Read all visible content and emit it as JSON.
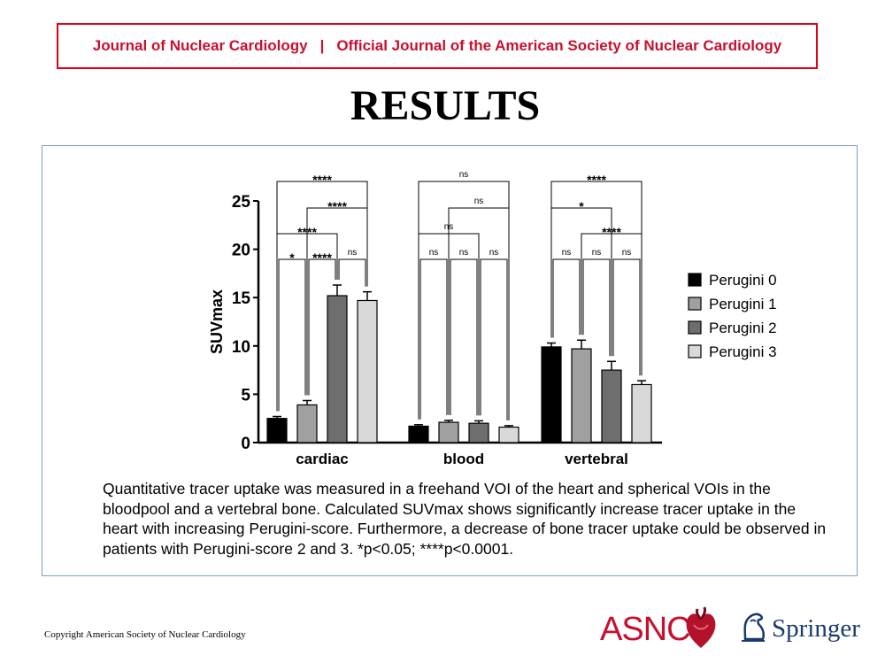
{
  "header": {
    "journal": "Journal of Nuclear Cardiology",
    "separator": "|",
    "subtitle": "Official Journal of the American Society of Nuclear Cardiology"
  },
  "slide_title": "RESULTS",
  "caption": "Quantitative tracer uptake was measured in a freehand VOI of the heart and spherical VOIs in the bloodpool and a vertebral bone. Calculated SUVmax shows significantly increase tracer uptake in the heart with increasing Perugini-score. Furthermore, a decrease of bone tracer uptake could be observed in patients with Perugini-score 2 and 3. *p<0.05; ****p<0.0001.",
  "footer": {
    "copyright": "Copyright  American Society of Nuclear Cardiology",
    "asnc_logo": "ASNC",
    "springer_logo": "Springer"
  },
  "colors": {
    "header_red": "#c8102e",
    "panel_border": "#7f9fc8",
    "perugini_0": "#000000",
    "perugini_1": "#a0a0a0",
    "perugini_2": "#6e6e6e",
    "perugini_3": "#d9d9d9"
  },
  "chart_data": {
    "type": "bar",
    "ylabel": "SUVmax",
    "ylim": [
      0,
      25
    ],
    "yticks": [
      0,
      5,
      10,
      15,
      20,
      25
    ],
    "categories": [
      "cardiac",
      "blood",
      "vertebral"
    ],
    "series": [
      {
        "name": "Perugini 0",
        "values": [
          2.5,
          1.7,
          9.9
        ],
        "errors": [
          0.2,
          0.15,
          0.4
        ]
      },
      {
        "name": "Perugini 1",
        "values": [
          3.9,
          2.1,
          9.7
        ],
        "errors": [
          0.45,
          0.2,
          0.9
        ]
      },
      {
        "name": "Perugini 2",
        "values": [
          15.2,
          2.0,
          7.5
        ],
        "errors": [
          1.1,
          0.25,
          0.9
        ]
      },
      {
        "name": "Perugini 3",
        "values": [
          14.7,
          1.6,
          6.0
        ],
        "errors": [
          0.9,
          0.15,
          0.4
        ]
      }
    ],
    "legend": "right",
    "significance": [
      {
        "category": "cardiac",
        "from": 0,
        "to": 3,
        "label": "****",
        "level": 4
      },
      {
        "category": "cardiac",
        "from": 1,
        "to": 3,
        "label": "****",
        "level": 3
      },
      {
        "category": "cardiac",
        "from": 0,
        "to": 2,
        "label": "****",
        "level": 2
      },
      {
        "category": "cardiac",
        "from": 0,
        "to": 1,
        "label": "*",
        "level": 1
      },
      {
        "category": "cardiac",
        "from": 1,
        "to": 2,
        "label": "****",
        "level": 1
      },
      {
        "category": "cardiac",
        "from": 2,
        "to": 3,
        "label": "ns",
        "level": 1
      },
      {
        "category": "blood",
        "from": 0,
        "to": 3,
        "label": "ns",
        "level": 4
      },
      {
        "category": "blood",
        "from": 1,
        "to": 3,
        "label": "ns",
        "level": 3
      },
      {
        "category": "blood",
        "from": 0,
        "to": 2,
        "label": "ns",
        "level": 2
      },
      {
        "category": "blood",
        "from": 0,
        "to": 1,
        "label": "ns",
        "level": 1
      },
      {
        "category": "blood",
        "from": 1,
        "to": 2,
        "label": "ns",
        "level": 1
      },
      {
        "category": "blood",
        "from": 2,
        "to": 3,
        "label": "ns",
        "level": 1
      },
      {
        "category": "vertebral",
        "from": 0,
        "to": 3,
        "label": "****",
        "level": 4
      },
      {
        "category": "vertebral",
        "from": 0,
        "to": 2,
        "label": "*",
        "level": 3
      },
      {
        "category": "vertebral",
        "from": 1,
        "to": 3,
        "label": "****",
        "level": 2
      },
      {
        "category": "vertebral",
        "from": 0,
        "to": 1,
        "label": "ns",
        "level": 1
      },
      {
        "category": "vertebral",
        "from": 1,
        "to": 2,
        "label": "ns",
        "level": 1
      },
      {
        "category": "vertebral",
        "from": 2,
        "to": 3,
        "label": "ns",
        "level": 1
      }
    ]
  }
}
